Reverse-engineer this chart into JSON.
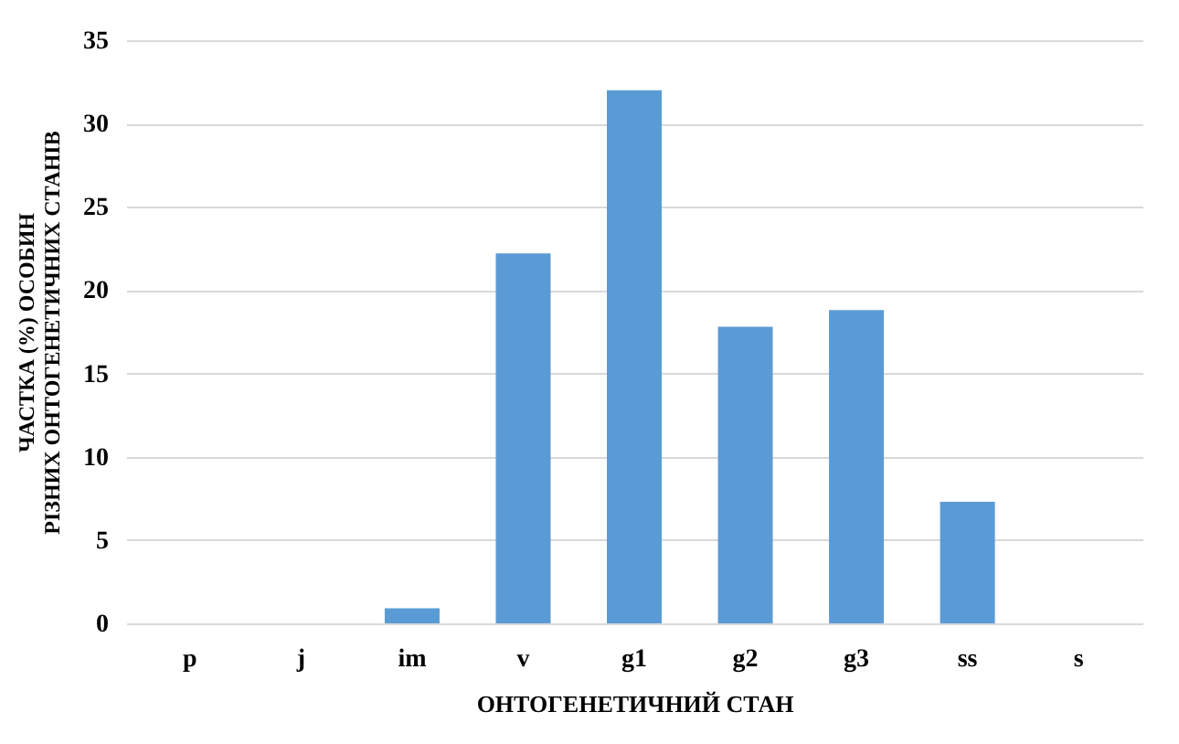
{
  "chart_data": {
    "type": "bar",
    "xlabel": "ОНТОГЕНЕТИЧНИЙ СТАН",
    "ylabel": "ЧАСТКА (%) ОСОБИН РІЗНИХ ОНТОГЕНЕТИЧНИХ СТАНІВ",
    "categories": [
      "p",
      "j",
      "im",
      "v",
      "g1",
      "g2",
      "g3",
      "ss",
      "s"
    ],
    "values": [
      0,
      0,
      0.9,
      22.2,
      32.0,
      17.8,
      18.8,
      7.3,
      0
    ],
    "color": "#5b9bd5",
    "ylim": [
      0,
      35
    ],
    "yticks": [
      0,
      5,
      10,
      15,
      20,
      25,
      30,
      35
    ],
    "grid": "y"
  }
}
